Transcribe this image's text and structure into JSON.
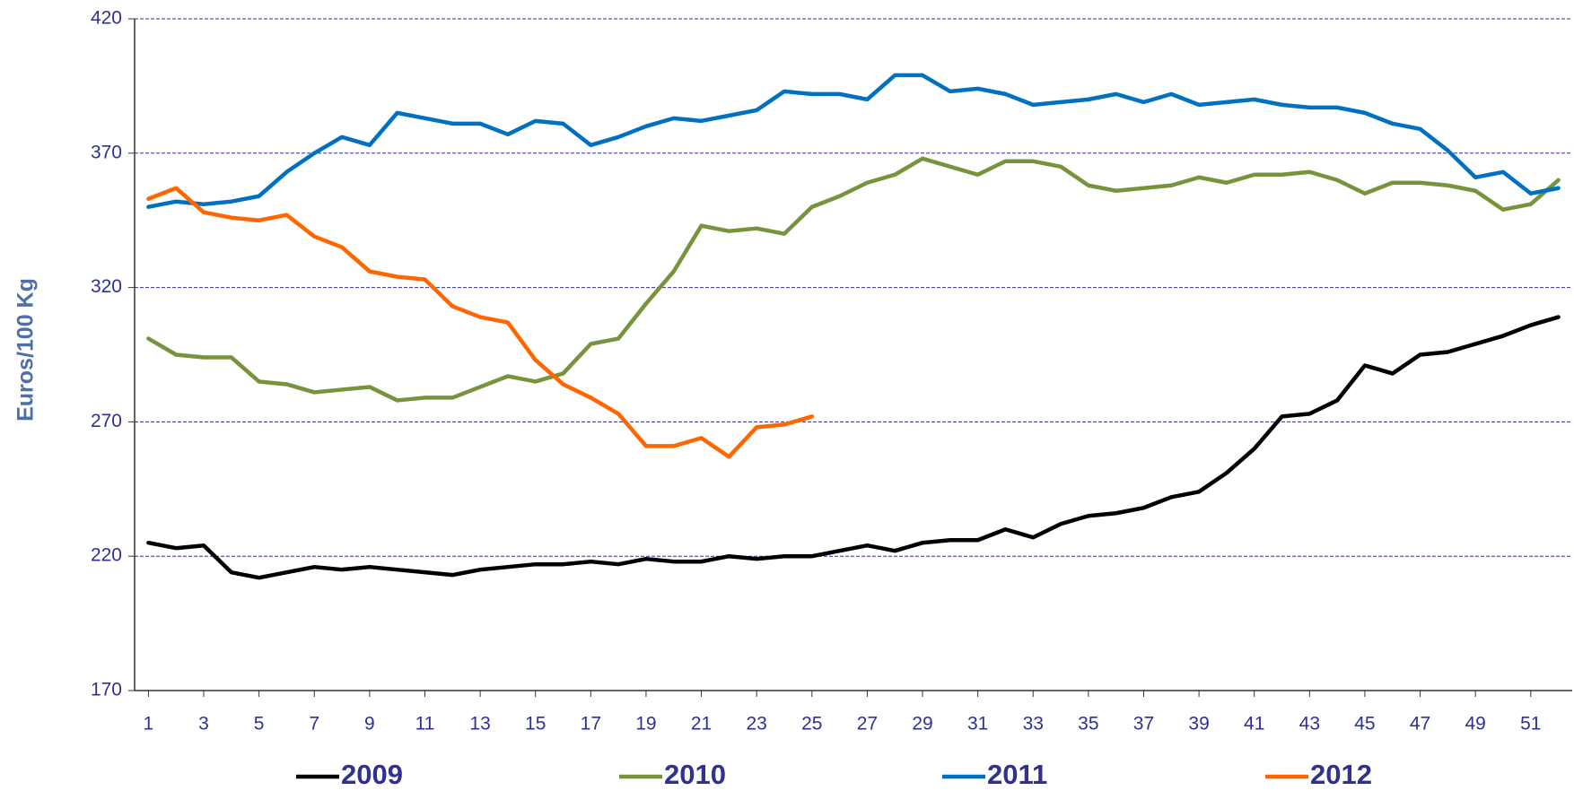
{
  "chart_data": {
    "type": "line",
    "y_label": "Euros/100 Kg",
    "x": [
      1,
      2,
      3,
      4,
      5,
      6,
      7,
      8,
      9,
      10,
      11,
      12,
      13,
      14,
      15,
      16,
      17,
      18,
      19,
      20,
      21,
      22,
      23,
      24,
      25,
      26,
      27,
      28,
      29,
      30,
      31,
      32,
      33,
      34,
      35,
      36,
      37,
      38,
      39,
      40,
      41,
      42,
      43,
      44,
      45,
      46,
      47,
      48,
      49,
      50,
      51,
      52
    ],
    "xlim": [
      0.5,
      52.5
    ],
    "xticks": [
      1,
      3,
      5,
      7,
      9,
      11,
      13,
      15,
      17,
      19,
      21,
      23,
      25,
      27,
      29,
      31,
      33,
      35,
      37,
      39,
      41,
      43,
      45,
      47,
      49,
      51
    ],
    "ylim": [
      170,
      420
    ],
    "yticks": [
      170,
      220,
      270,
      320,
      370,
      420
    ],
    "grid": true,
    "legend": "bottom",
    "series": [
      {
        "name": "2009",
        "color": "#000000",
        "values": [
          225,
          223,
          224,
          214,
          212,
          214,
          216,
          215,
          216,
          215,
          214,
          213,
          215,
          216,
          217,
          217,
          218,
          217,
          219,
          218,
          218,
          220,
          219,
          220,
          220,
          222,
          224,
          222,
          225,
          226,
          226,
          230,
          227,
          232,
          235,
          236,
          238,
          242,
          244,
          251,
          260,
          272,
          273,
          278,
          291,
          288,
          295,
          296,
          299,
          302,
          306,
          309
        ]
      },
      {
        "name": "2010",
        "color": "#77933c",
        "values": [
          301,
          295,
          294,
          294,
          285,
          284,
          281,
          282,
          283,
          278,
          279,
          279,
          283,
          287,
          285,
          288,
          299,
          301,
          314,
          326,
          343,
          341,
          342,
          340,
          350,
          354,
          359,
          362,
          368,
          365,
          362,
          367,
          367,
          365,
          358,
          356,
          357,
          358,
          361,
          359,
          362,
          362,
          363,
          360,
          355,
          359,
          359,
          358,
          356,
          349,
          351,
          360
        ]
      },
      {
        "name": "2011",
        "color": "#0070c0",
        "values": [
          350,
          352,
          351,
          352,
          354,
          363,
          370,
          376,
          373,
          385,
          383,
          381,
          381,
          377,
          382,
          381,
          373,
          376,
          380,
          383,
          382,
          384,
          386,
          393,
          392,
          392,
          390,
          399,
          399,
          393,
          394,
          392,
          388,
          389,
          390,
          392,
          389,
          392,
          388,
          389,
          390,
          388,
          387,
          387,
          385,
          381,
          379,
          371,
          361,
          363,
          355,
          357
        ]
      },
      {
        "name": "2012",
        "color": "#ff6600",
        "values": [
          353,
          357,
          348,
          346,
          345,
          347,
          339,
          335,
          326,
          324,
          323,
          313,
          309,
          307,
          293,
          284,
          279,
          273,
          261,
          261,
          264,
          257,
          268,
          269,
          272,
          null,
          null,
          null,
          null,
          null,
          null,
          null,
          null,
          null,
          null,
          null,
          null,
          null,
          null,
          null,
          null,
          null,
          null,
          null,
          null,
          null,
          null,
          null,
          null,
          null,
          null,
          null
        ]
      }
    ]
  }
}
